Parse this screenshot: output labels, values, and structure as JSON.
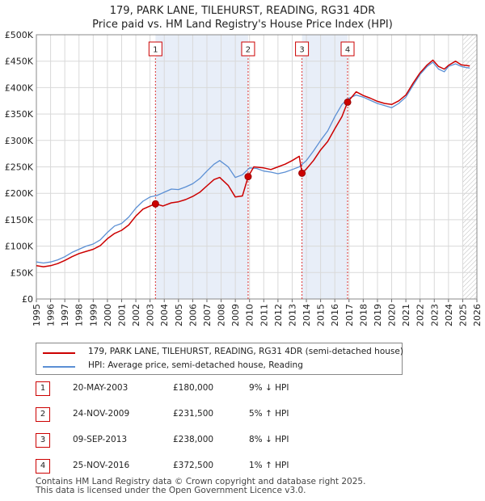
{
  "title_line1": "179, PARK LANE, TILEHURST, READING, RG31 4DR",
  "title_line2": "Price paid vs. HM Land Registry's House Price Index (HPI)",
  "legend": {
    "property_label": "179, PARK LANE, TILEHURST, READING, RG31 4DR (semi-detached house)",
    "hpi_label": "HPI: Average price, semi-detached house, Reading",
    "property_color": "#cc0000",
    "hpi_color": "#5b8fd4"
  },
  "sales": [
    {
      "num": "1",
      "date": "20-MAY-2003",
      "price": "£180,000",
      "hpi": "9% ↓ HPI"
    },
    {
      "num": "2",
      "date": "24-NOV-2009",
      "price": "£231,500",
      "hpi": "5% ↑ HPI"
    },
    {
      "num": "3",
      "date": "09-SEP-2013",
      "price": "£238,000",
      "hpi": "8% ↓ HPI"
    },
    {
      "num": "4",
      "date": "25-NOV-2016",
      "price": "£372,500",
      "hpi": "1% ↑ HPI"
    }
  ],
  "footer_line1": "Contains HM Land Registry data © Crown copyright and database right 2025.",
  "footer_line2": "This data is licensed under the Open Government Licence v3.0.",
  "chart_data": {
    "type": "line",
    "title": "179, PARK LANE, TILEHURST, READING, RG31 4DR",
    "subtitle": "Price paid vs. HM Land Registry's House Price Index (HPI)",
    "xlabel": "",
    "ylabel": "",
    "xlim": [
      1995,
      2026
    ],
    "ylim": [
      0,
      500000
    ],
    "x_ticks": [
      "1995",
      "1996",
      "1997",
      "1998",
      "1999",
      "2000",
      "2001",
      "2002",
      "2003",
      "2004",
      "2005",
      "2006",
      "2007",
      "2008",
      "2009",
      "2010",
      "2011",
      "2012",
      "2013",
      "2014",
      "2015",
      "2016",
      "2017",
      "2018",
      "2019",
      "2020",
      "2021",
      "2022",
      "2023",
      "2024",
      "2025",
      "2026"
    ],
    "y_ticks": [
      {
        "value": 0,
        "label": "£0"
      },
      {
        "value": 50000,
        "label": "£50K"
      },
      {
        "value": 100000,
        "label": "£100K"
      },
      {
        "value": 150000,
        "label": "£150K"
      },
      {
        "value": 200000,
        "label": "£200K"
      },
      {
        "value": 250000,
        "label": "£250K"
      },
      {
        "value": 300000,
        "label": "£300K"
      },
      {
        "value": 350000,
        "label": "£350K"
      },
      {
        "value": 400000,
        "label": "£400K"
      },
      {
        "value": 450000,
        "label": "£450K"
      },
      {
        "value": 500000,
        "label": "£500K"
      }
    ],
    "grid": true,
    "shaded_regions": [
      [
        2003.38,
        2009.9
      ],
      [
        2013.69,
        2016.9
      ]
    ],
    "future_hatch_from": 2025.0,
    "series": [
      {
        "name": "HPI: Average price, semi-detached house, Reading",
        "color": "#5b8fd4",
        "x": [
          1995.0,
          1995.5,
          1996.0,
          1996.5,
          1997.0,
          1997.5,
          1998.0,
          1998.5,
          1999.0,
          1999.5,
          2000.0,
          2000.5,
          2001.0,
          2001.5,
          2002.0,
          2002.5,
          2003.0,
          2003.5,
          2004.0,
          2004.5,
          2005.0,
          2005.5,
          2006.0,
          2006.5,
          2007.0,
          2007.5,
          2007.9,
          2008.5,
          2009.0,
          2009.5,
          2010.0,
          2010.5,
          2011.0,
          2011.5,
          2012.0,
          2012.5,
          2013.0,
          2013.5,
          2014.0,
          2014.5,
          2015.0,
          2015.5,
          2016.0,
          2016.5,
          2017.0,
          2017.5,
          2018.0,
          2018.5,
          2019.0,
          2019.5,
          2020.0,
          2020.5,
          2021.0,
          2021.5,
          2022.0,
          2022.5,
          2022.9,
          2023.3,
          2023.7,
          2024.0,
          2024.5,
          2024.9,
          2025.2,
          2025.5
        ],
        "y": [
          70000,
          68000,
          70000,
          74000,
          80000,
          88000,
          94000,
          100000,
          104000,
          112000,
          126000,
          138000,
          143000,
          155000,
          172000,
          185000,
          193000,
          196000,
          202000,
          208000,
          207000,
          212000,
          218000,
          228000,
          242000,
          255000,
          262000,
          250000,
          230000,
          235000,
          248000,
          247000,
          242000,
          240000,
          237000,
          240000,
          245000,
          250000,
          262000,
          280000,
          300000,
          318000,
          345000,
          368000,
          380000,
          386000,
          382000,
          376000,
          370000,
          366000,
          362000,
          370000,
          382000,
          404000,
          425000,
          440000,
          448000,
          435000,
          430000,
          440000,
          445000,
          440000,
          438000,
          437000
        ]
      },
      {
        "name": "179, PARK LANE, TILEHURST, READING, RG31 4DR (semi-detached house)",
        "color": "#cc0000",
        "x": [
          1995.0,
          1995.5,
          1996.0,
          1996.5,
          1997.0,
          1997.5,
          1998.0,
          1998.5,
          1999.0,
          1999.5,
          2000.0,
          2000.5,
          2001.0,
          2001.5,
          2002.0,
          2002.5,
          2003.0,
          2003.38,
          2003.9,
          2004.5,
          2005.0,
          2005.5,
          2006.0,
          2006.5,
          2007.0,
          2007.5,
          2007.9,
          2008.5,
          2009.0,
          2009.5,
          2009.9,
          2010.3,
          2011.0,
          2011.5,
          2012.0,
          2012.5,
          2013.0,
          2013.5,
          2013.69,
          2014.0,
          2014.5,
          2015.0,
          2015.5,
          2016.0,
          2016.5,
          2016.9,
          2017.5,
          2018.0,
          2018.5,
          2019.0,
          2019.5,
          2020.0,
          2020.5,
          2021.0,
          2021.5,
          2022.0,
          2022.5,
          2022.9,
          2023.3,
          2023.7,
          2024.0,
          2024.5,
          2024.9,
          2025.2,
          2025.5
        ],
        "y": [
          63000,
          61000,
          63000,
          67000,
          73000,
          80000,
          86000,
          90000,
          94000,
          101000,
          114000,
          124000,
          130000,
          140000,
          157000,
          170000,
          176000,
          180000,
          176000,
          182000,
          184000,
          188000,
          194000,
          202000,
          214000,
          226000,
          230000,
          215000,
          193000,
          195000,
          231500,
          250000,
          248000,
          245000,
          250000,
          255000,
          262000,
          270000,
          238000,
          246000,
          262000,
          282000,
          298000,
          322000,
          345000,
          372500,
          392000,
          385000,
          380000,
          374000,
          370000,
          368000,
          375000,
          386000,
          408000,
          428000,
          443000,
          452000,
          440000,
          435000,
          442000,
          450000,
          443000,
          442000,
          441000
        ]
      }
    ],
    "sale_markers": [
      {
        "label": "1",
        "x": 2003.38,
        "y": 180000
      },
      {
        "label": "2",
        "x": 2009.9,
        "y": 231500
      },
      {
        "label": "3",
        "x": 2013.69,
        "y": 238000
      },
      {
        "label": "4",
        "x": 2016.9,
        "y": 372500
      }
    ]
  }
}
